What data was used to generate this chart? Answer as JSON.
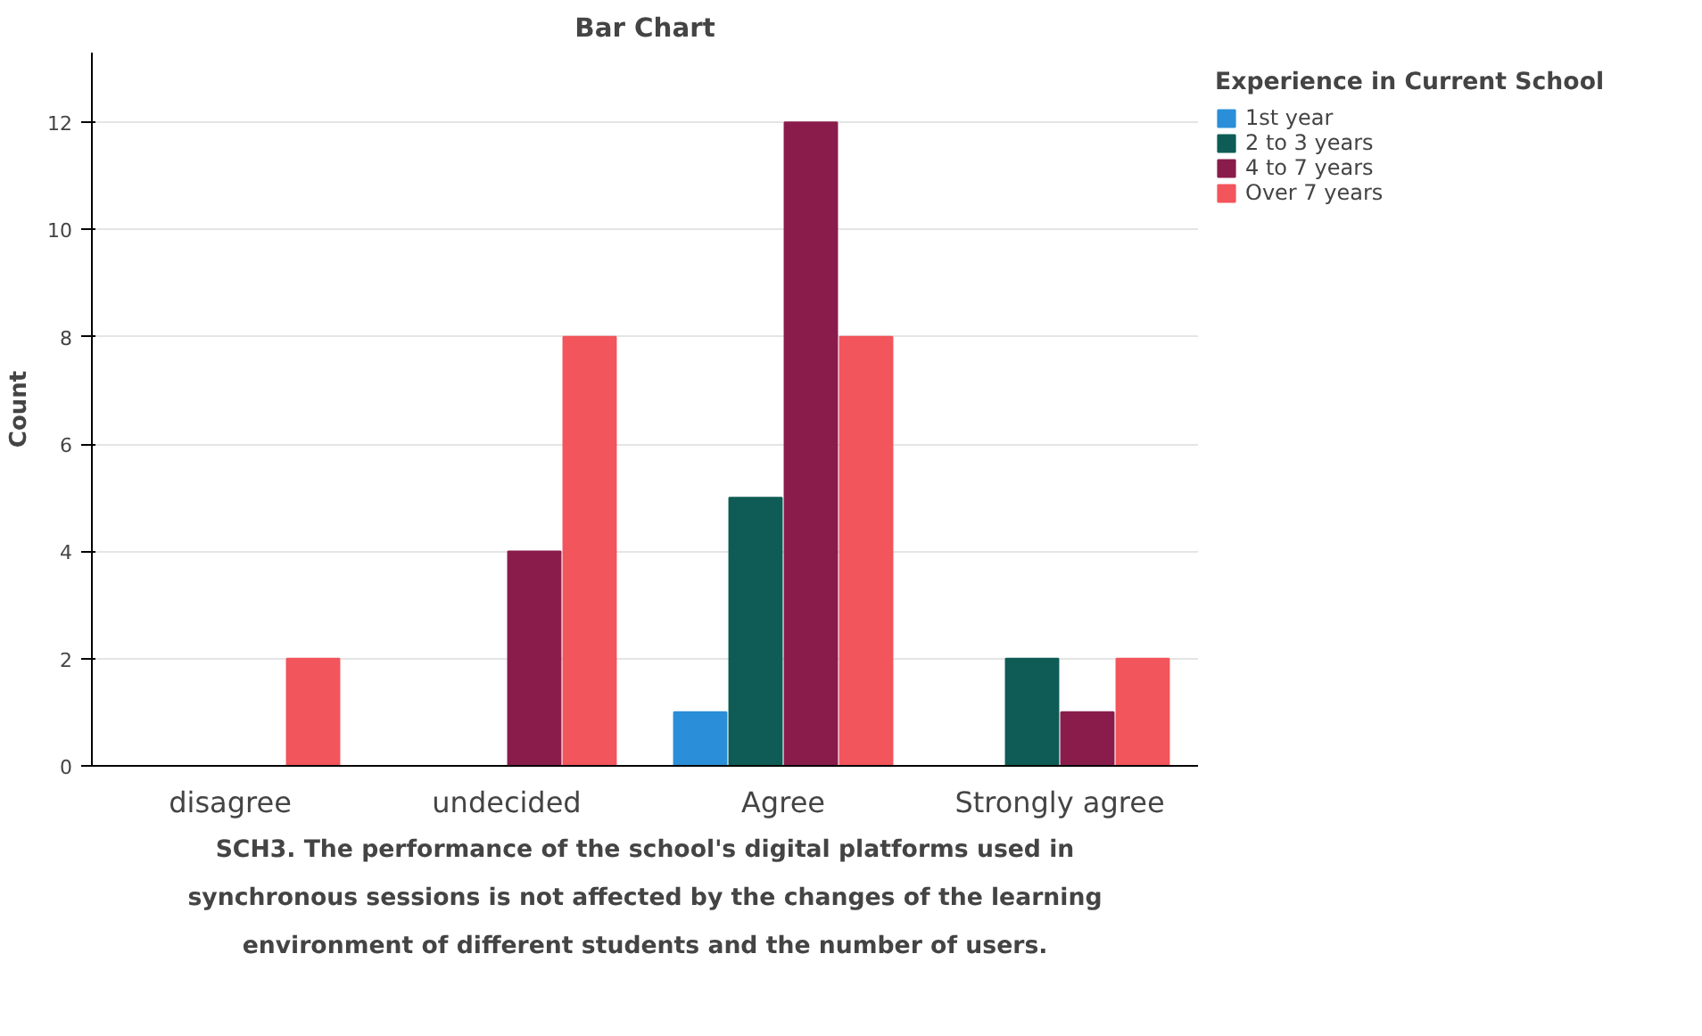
{
  "chart_data": {
    "type": "bar",
    "title": "Bar Chart",
    "xlabel": "SCH3. The performance of the school's digital platforms used in synchronous sessions is not affected by the changes of the learning environment of different students and the number of users.",
    "ylabel": "Count",
    "legend_title": "Experience in Current School",
    "categories": [
      "disagree",
      "undecided",
      "Agree",
      "Strongly agree"
    ],
    "series": [
      {
        "name": "1st year",
        "color": "#2a8fd8",
        "values": [
          0,
          0,
          1,
          0
        ]
      },
      {
        "name": "2 to 3 years",
        "color": "#0e5c55",
        "values": [
          0,
          0,
          5,
          2
        ]
      },
      {
        "name": "4 to 7 years",
        "color": "#8a1c4c",
        "values": [
          0,
          4,
          12,
          1
        ]
      },
      {
        "name": "Over 7 years",
        "color": "#f2555b",
        "values": [
          2,
          8,
          8,
          2
        ]
      }
    ],
    "ylim": [
      0,
      13.3
    ],
    "yticks": [
      0,
      2,
      4,
      6,
      8,
      10,
      12
    ],
    "grid": "y",
    "legend": "top right"
  }
}
